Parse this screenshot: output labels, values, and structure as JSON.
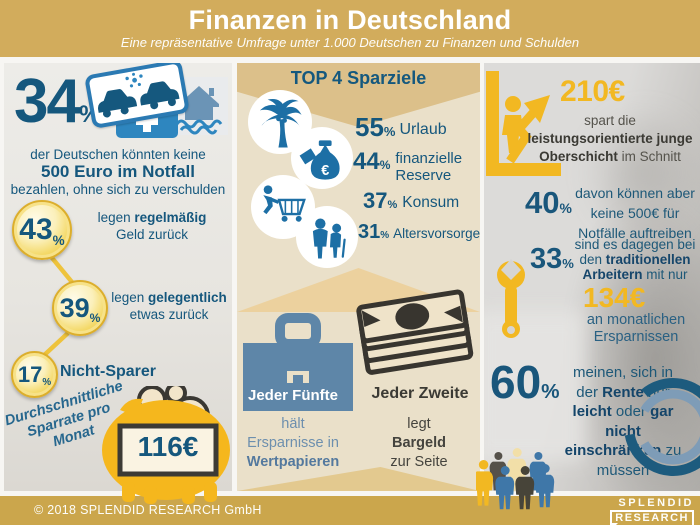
{
  "header": {
    "title": "Finanzen in Deutschland",
    "subtitle": "Eine repräsentative Umfrage unter 1.000 Deutschen zu Finanzen und Schulden"
  },
  "left": {
    "big_value": "34",
    "big_percent": "%",
    "intro_lines": [
      [
        {
          "t": "der Deutschen könnten keine",
          "b": 0
        }
      ],
      [
        {
          "t": "500 Euro im Notfall",
          "b": 1
        }
      ],
      [
        {
          "t": "bezahlen, ohne sich zu verschulden",
          "b": 0
        }
      ]
    ],
    "coins": [
      {
        "value": "43",
        "percent": "%",
        "line1": [
          {
            "t": "legen ",
            "b": 0
          },
          {
            "t": "regelmäßig",
            "b": 1
          }
        ],
        "line2": [
          {
            "t": "Geld zurück",
            "b": 0
          }
        ]
      },
      {
        "value": "39",
        "percent": "%",
        "line1": [
          {
            "t": "legen ",
            "b": 0
          },
          {
            "t": "gelegentlich",
            "b": 1
          }
        ],
        "line2": [
          {
            "t": "etwas zurück",
            "b": 0
          }
        ]
      },
      {
        "value": "17",
        "percent": "%",
        "line1": [
          {
            "t": "Nicht-Sparer",
            "b": 1
          }
        ],
        "line2": []
      }
    ],
    "rotated_lines": [
      "Durchschnittliche",
      "Sparrate pro",
      "Monat"
    ],
    "piggy_amount": "116€"
  },
  "middle": {
    "title": "TOP 4 Sparziele",
    "goals": [
      {
        "value": "55",
        "percent": "%",
        "label": "Urlaub",
        "icon": "palm-tree-icon"
      },
      {
        "value": "44",
        "percent": "%",
        "label": "finanzielle Reserve",
        "icon": "money-bag-icon"
      },
      {
        "value": "37",
        "percent": "%",
        "label": "Konsum",
        "icon": "shopping-cart-icon"
      },
      {
        "value": "31",
        "percent": "%",
        "label": "Altersvorsorge",
        "icon": "elderly-couple-icon"
      }
    ],
    "fifth": {
      "headline": "Jeder Fünfte",
      "lines": [
        [
          {
            "t": "hält",
            "b": 0
          }
        ],
        [
          {
            "t": "Ersparnisse in",
            "b": 0
          }
        ],
        [
          {
            "t": "Wertpapieren",
            "b": 1
          }
        ]
      ]
    },
    "second": {
      "headline": "Jeder Zweite",
      "lines": [
        [
          {
            "t": "legt",
            "b": 0
          }
        ],
        [
          {
            "t": "Bargeld",
            "b": 1
          }
        ],
        [
          {
            "t": "zur Seite",
            "b": 0
          }
        ]
      ]
    }
  },
  "right": {
    "s1": {
      "amount": "210€",
      "lines": [
        [
          {
            "t": "spart die",
            "b": 0
          }
        ],
        [
          {
            "t": "leistungsorientierte junge",
            "b": 1
          }
        ],
        [
          {
            "t": "Oberschicht",
            "b": 1
          },
          {
            "t": " im Schnitt",
            "b": 0
          }
        ]
      ]
    },
    "s2": {
      "value": "40",
      "percent": "%",
      "lines": [
        [
          {
            "t": "davon können aber",
            "b": 0
          }
        ],
        [
          {
            "t": "keine 500€ für",
            "b": 0
          }
        ],
        [
          {
            "t": "Notfälle auftreiben",
            "b": 0
          }
        ]
      ]
    },
    "s3": {
      "value": "33",
      "percent": "%",
      "lines": [
        [
          {
            "t": "sind es dagegen bei",
            "b": 0
          }
        ],
        [
          {
            "t": "den ",
            "b": 0
          },
          {
            "t": "traditionellen",
            "b": 1
          }
        ],
        [
          {
            "t": "Arbeitern",
            "b": 1
          },
          {
            "t": " mit nur",
            "b": 0
          }
        ]
      ],
      "amount": "134€",
      "lines2": [
        [
          {
            "t": "an monatlichen",
            "b": 0
          }
        ],
        [
          {
            "t": "Ersparnissen",
            "b": 0
          }
        ]
      ]
    },
    "s4": {
      "value": "60",
      "percent": "%",
      "lines": [
        [
          {
            "t": "meinen, sich in",
            "b": 0
          }
        ],
        [
          {
            "t": "der ",
            "b": 0
          },
          {
            "t": "Rente",
            "b": 1
          },
          {
            "t": " nur",
            "b": 0
          }
        ],
        [
          {
            "t": "leicht",
            "b": 1
          },
          {
            "t": " oder ",
            "b": 0
          },
          {
            "t": "gar",
            "b": 1
          }
        ],
        [
          {
            "t": "nicht",
            "b": 1
          }
        ],
        [
          {
            "t": "einschränken",
            "b": 1
          },
          {
            "t": " zu",
            "b": 0
          }
        ],
        [
          {
            "t": "müssen",
            "b": 0
          }
        ]
      ]
    }
  },
  "footer": {
    "copyright": "© 2018 SPLENDID RESEARCH GmbH",
    "logo_line1": "SPLENDID",
    "logo_line2": "RESEARCH"
  },
  "colors": {
    "header_gold": "#d2ac5c",
    "footer_gold": "#cba64c",
    "accent_gold": "#f2b822",
    "teal": "#15577d",
    "steel_blue": "#5e86a8",
    "icon_blue": "#1d6fa5",
    "dark_text": "#3b3a34"
  }
}
